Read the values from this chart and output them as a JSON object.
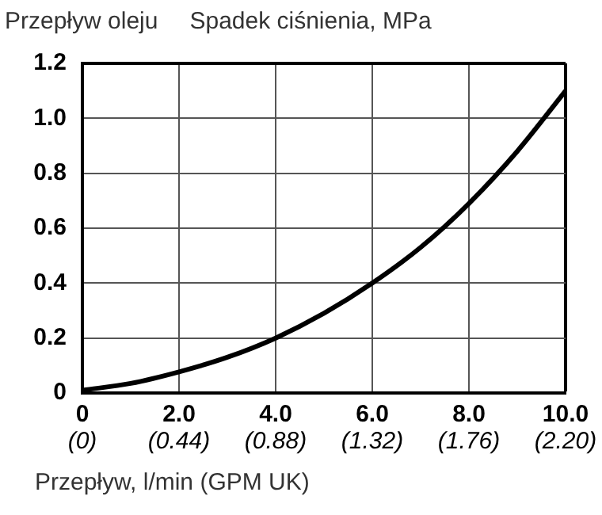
{
  "chart_data": {
    "type": "line",
    "title": "Przepływ oleju",
    "ylabel": "Spadek ciśnienia, MPa",
    "xlabel": "Przepływ, l/min (GPM UK)",
    "x": [
      0,
      1,
      2,
      3,
      4,
      5,
      6,
      7,
      8,
      9,
      10
    ],
    "series": [
      {
        "color": "#000000",
        "values": [
          0.01,
          0.035,
          0.077,
          0.13,
          0.2,
          0.29,
          0.4,
          0.53,
          0.69,
          0.88,
          1.1
        ]
      }
    ],
    "xlim": [
      0,
      10
    ],
    "xticks": [
      0,
      {
        "value": 2,
        "label": "2.0"
      },
      {
        "value": 4,
        "label": "4.0"
      },
      {
        "value": 6,
        "label": "6.0"
      },
      {
        "value": 8,
        "label": "8.0"
      },
      {
        "value": 10,
        "label": "10.0"
      }
    ],
    "ylim": [
      0,
      1.2
    ],
    "yticks": [
      0,
      0.2,
      0.4,
      0.6,
      0.8,
      {
        "value": 1,
        "label": "1.0"
      },
      1.2
    ],
    "x2lim": [
      0,
      2.2
    ],
    "x2ticks": [
      {
        "value": 0,
        "label": "(0)"
      },
      {
        "value": 0.44,
        "label": "(0.44)"
      },
      {
        "value": 0.88,
        "label": "(0.88)"
      },
      {
        "value": 1.32,
        "label": "(1.32)"
      },
      {
        "value": 1.76,
        "label": "(1.76)"
      },
      {
        "value": 2.2,
        "label": "(2.20)"
      }
    ],
    "grid": true,
    "legend": false,
    "marker": "none",
    "line_style": "solid"
  }
}
